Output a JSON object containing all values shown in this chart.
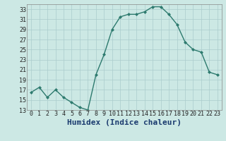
{
  "x": [
    0,
    1,
    2,
    3,
    4,
    5,
    6,
    7,
    8,
    9,
    10,
    11,
    12,
    13,
    14,
    15,
    16,
    17,
    18,
    19,
    20,
    21,
    22,
    23
  ],
  "y": [
    16.5,
    17.5,
    15.5,
    17.0,
    15.5,
    14.5,
    13.5,
    13.0,
    20.0,
    24.0,
    29.0,
    31.5,
    32.0,
    32.0,
    32.5,
    33.5,
    33.5,
    32.0,
    30.0,
    26.5,
    25.0,
    24.5,
    20.5,
    20.0
  ],
  "line_color": "#2d7a6e",
  "marker_color": "#2d7a6e",
  "bg_color": "#cce8e4",
  "grid_color": "#aacccc",
  "xlabel": "Humidex (Indice chaleur)",
  "xlim": [
    -0.5,
    23.5
  ],
  "ylim": [
    13,
    34
  ],
  "yticks": [
    13,
    15,
    17,
    19,
    21,
    23,
    25,
    27,
    29,
    31,
    33
  ],
  "xtick_positions": [
    0,
    1,
    2,
    3,
    4,
    5,
    6,
    7,
    8,
    9,
    10,
    11,
    12,
    13,
    14,
    15,
    16,
    17,
    18,
    19,
    20,
    21,
    22,
    23
  ],
  "xtick_labels": [
    "0",
    "1",
    "2",
    "3",
    "4",
    "5",
    "6",
    "7",
    "8",
    "9",
    "10",
    "11",
    "12",
    "13",
    "14",
    "15",
    "16",
    "17",
    "18",
    "19",
    "20",
    "21",
    "22",
    "23"
  ],
  "tick_fontsize": 6,
  "xlabel_fontsize": 8
}
